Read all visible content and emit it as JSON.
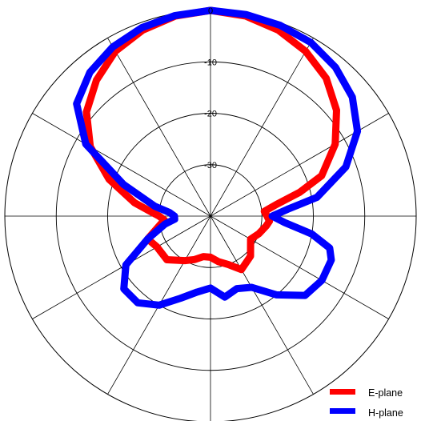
{
  "chart_data": {
    "type": "polar-line",
    "r_ticks": [
      "0",
      "-10",
      "-20",
      "-30"
    ],
    "r_range": [
      -40,
      0
    ],
    "angle_ticks_deg": [
      0,
      30,
      60,
      90,
      120,
      150,
      180,
      210,
      240,
      270,
      300,
      330
    ],
    "grid": true,
    "legend_position": "bottom-right",
    "angle_convention": "0 deg at top, positive clockwise",
    "series": [
      {
        "name": "E-plane",
        "color": "#ff0000",
        "points": [
          [
            0,
            0
          ],
          [
            10,
            -0.5
          ],
          [
            20,
            -1.5
          ],
          [
            30,
            -3
          ],
          [
            40,
            -5
          ],
          [
            50,
            -8
          ],
          [
            60,
            -12
          ],
          [
            70,
            -17
          ],
          [
            75,
            -22
          ],
          [
            80,
            -27
          ],
          [
            85,
            -29.5
          ],
          [
            90,
            -29
          ],
          [
            95,
            -28.5
          ],
          [
            100,
            -29
          ],
          [
            110,
            -30
          ],
          [
            120,
            -31
          ],
          [
            135,
            -29
          ],
          [
            150,
            -28
          ],
          [
            160,
            -30
          ],
          [
            170,
            -31
          ],
          [
            180,
            -32
          ],
          [
            190,
            -32
          ],
          [
            200,
            -31
          ],
          [
            210,
            -30
          ],
          [
            225,
            -28
          ],
          [
            240,
            -28
          ],
          [
            250,
            -27
          ],
          [
            260,
            -30
          ],
          [
            265,
            -31
          ],
          [
            270,
            -30
          ],
          [
            275,
            -28
          ],
          [
            280,
            -25
          ],
          [
            290,
            -19
          ],
          [
            300,
            -13
          ],
          [
            310,
            -8.5
          ],
          [
            320,
            -5.5
          ],
          [
            330,
            -3
          ],
          [
            340,
            -1.5
          ],
          [
            350,
            -0.5
          ],
          [
            360,
            0
          ]
        ]
      },
      {
        "name": "H-plane",
        "color": "#0000ff",
        "points": [
          [
            0,
            0
          ],
          [
            10,
            -0.2
          ],
          [
            20,
            -0.5
          ],
          [
            30,
            -1
          ],
          [
            40,
            -2.2
          ],
          [
            50,
            -4
          ],
          [
            60,
            -7
          ],
          [
            70,
            -12
          ],
          [
            80,
            -19
          ],
          [
            85,
            -25
          ],
          [
            90,
            -28
          ],
          [
            95,
            -25.5
          ],
          [
            100,
            -20
          ],
          [
            105,
            -16
          ],
          [
            110,
            -15
          ],
          [
            120,
            -15
          ],
          [
            130,
            -16
          ],
          [
            140,
            -20
          ],
          [
            150,
            -24
          ],
          [
            160,
            -25
          ],
          [
            170,
            -24
          ],
          [
            180,
            -26
          ],
          [
            190,
            -25
          ],
          [
            200,
            -23
          ],
          [
            210,
            -20
          ],
          [
            220,
            -18
          ],
          [
            230,
            -18
          ],
          [
            240,
            -21
          ],
          [
            250,
            -27
          ],
          [
            260,
            -31
          ],
          [
            265,
            -33
          ],
          [
            270,
            -33
          ],
          [
            275,
            -32
          ],
          [
            280,
            -29
          ],
          [
            290,
            -22
          ],
          [
            300,
            -12
          ],
          [
            310,
            -6
          ],
          [
            320,
            -3.5
          ],
          [
            330,
            -2
          ],
          [
            340,
            -1
          ],
          [
            350,
            -0.4
          ],
          [
            360,
            0
          ]
        ]
      }
    ]
  }
}
